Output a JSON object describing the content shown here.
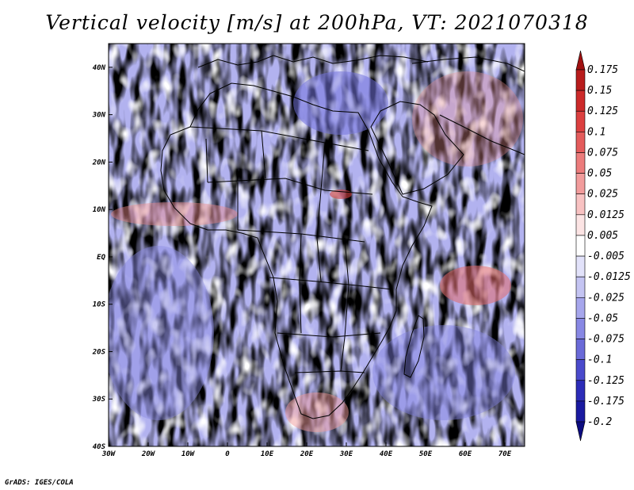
{
  "title": "Vertical velocity [m/s] at 200hPa, VT: 2021070318",
  "footer": "GrADS: IGES/COLA",
  "map": {
    "lon_range": [
      -30,
      75
    ],
    "lat_range": [
      -40,
      45
    ],
    "lon_ticks": [
      {
        "value": -30,
        "label": "30W"
      },
      {
        "value": -20,
        "label": "20W"
      },
      {
        "value": -10,
        "label": "10W"
      },
      {
        "value": 0,
        "label": "0"
      },
      {
        "value": 10,
        "label": "10E"
      },
      {
        "value": 20,
        "label": "20E"
      },
      {
        "value": 30,
        "label": "30E"
      },
      {
        "value": 40,
        "label": "40E"
      },
      {
        "value": 50,
        "label": "50E"
      },
      {
        "value": 60,
        "label": "60E"
      },
      {
        "value": 70,
        "label": "70E"
      }
    ],
    "lat_ticks": [
      {
        "value": 40,
        "label": "40N"
      },
      {
        "value": 30,
        "label": "30N"
      },
      {
        "value": 20,
        "label": "20N"
      },
      {
        "value": 10,
        "label": "10N"
      },
      {
        "value": 0,
        "label": "EQ"
      },
      {
        "value": -10,
        "label": "10S"
      },
      {
        "value": -20,
        "label": "20S"
      },
      {
        "value": -30,
        "label": "30S"
      },
      {
        "value": -40,
        "label": "40S"
      }
    ]
  },
  "colorbar": {
    "labels": [
      "0.175",
      "0.15",
      "0.125",
      "0.1",
      "0.075",
      "0.05",
      "0.025",
      "0.0125",
      "0.005",
      "-0.005",
      "-0.0125",
      "-0.025",
      "-0.05",
      "-0.075",
      "-0.1",
      "-0.125",
      "-0.175",
      "-0.2"
    ],
    "colors": [
      "#a01010",
      "#b81c1c",
      "#cc2a2a",
      "#dc4040",
      "#e45c5c",
      "#ec7c7c",
      "#f29c9c",
      "#f8c2c2",
      "#fce4e4",
      "#ffffff",
      "#e2e2fa",
      "#c4c4f2",
      "#a6a6ec",
      "#8888e4",
      "#6a6ad8",
      "#4a4acc",
      "#2c2cb8",
      "#1a1aa0",
      "#0c0c80"
    ]
  }
}
